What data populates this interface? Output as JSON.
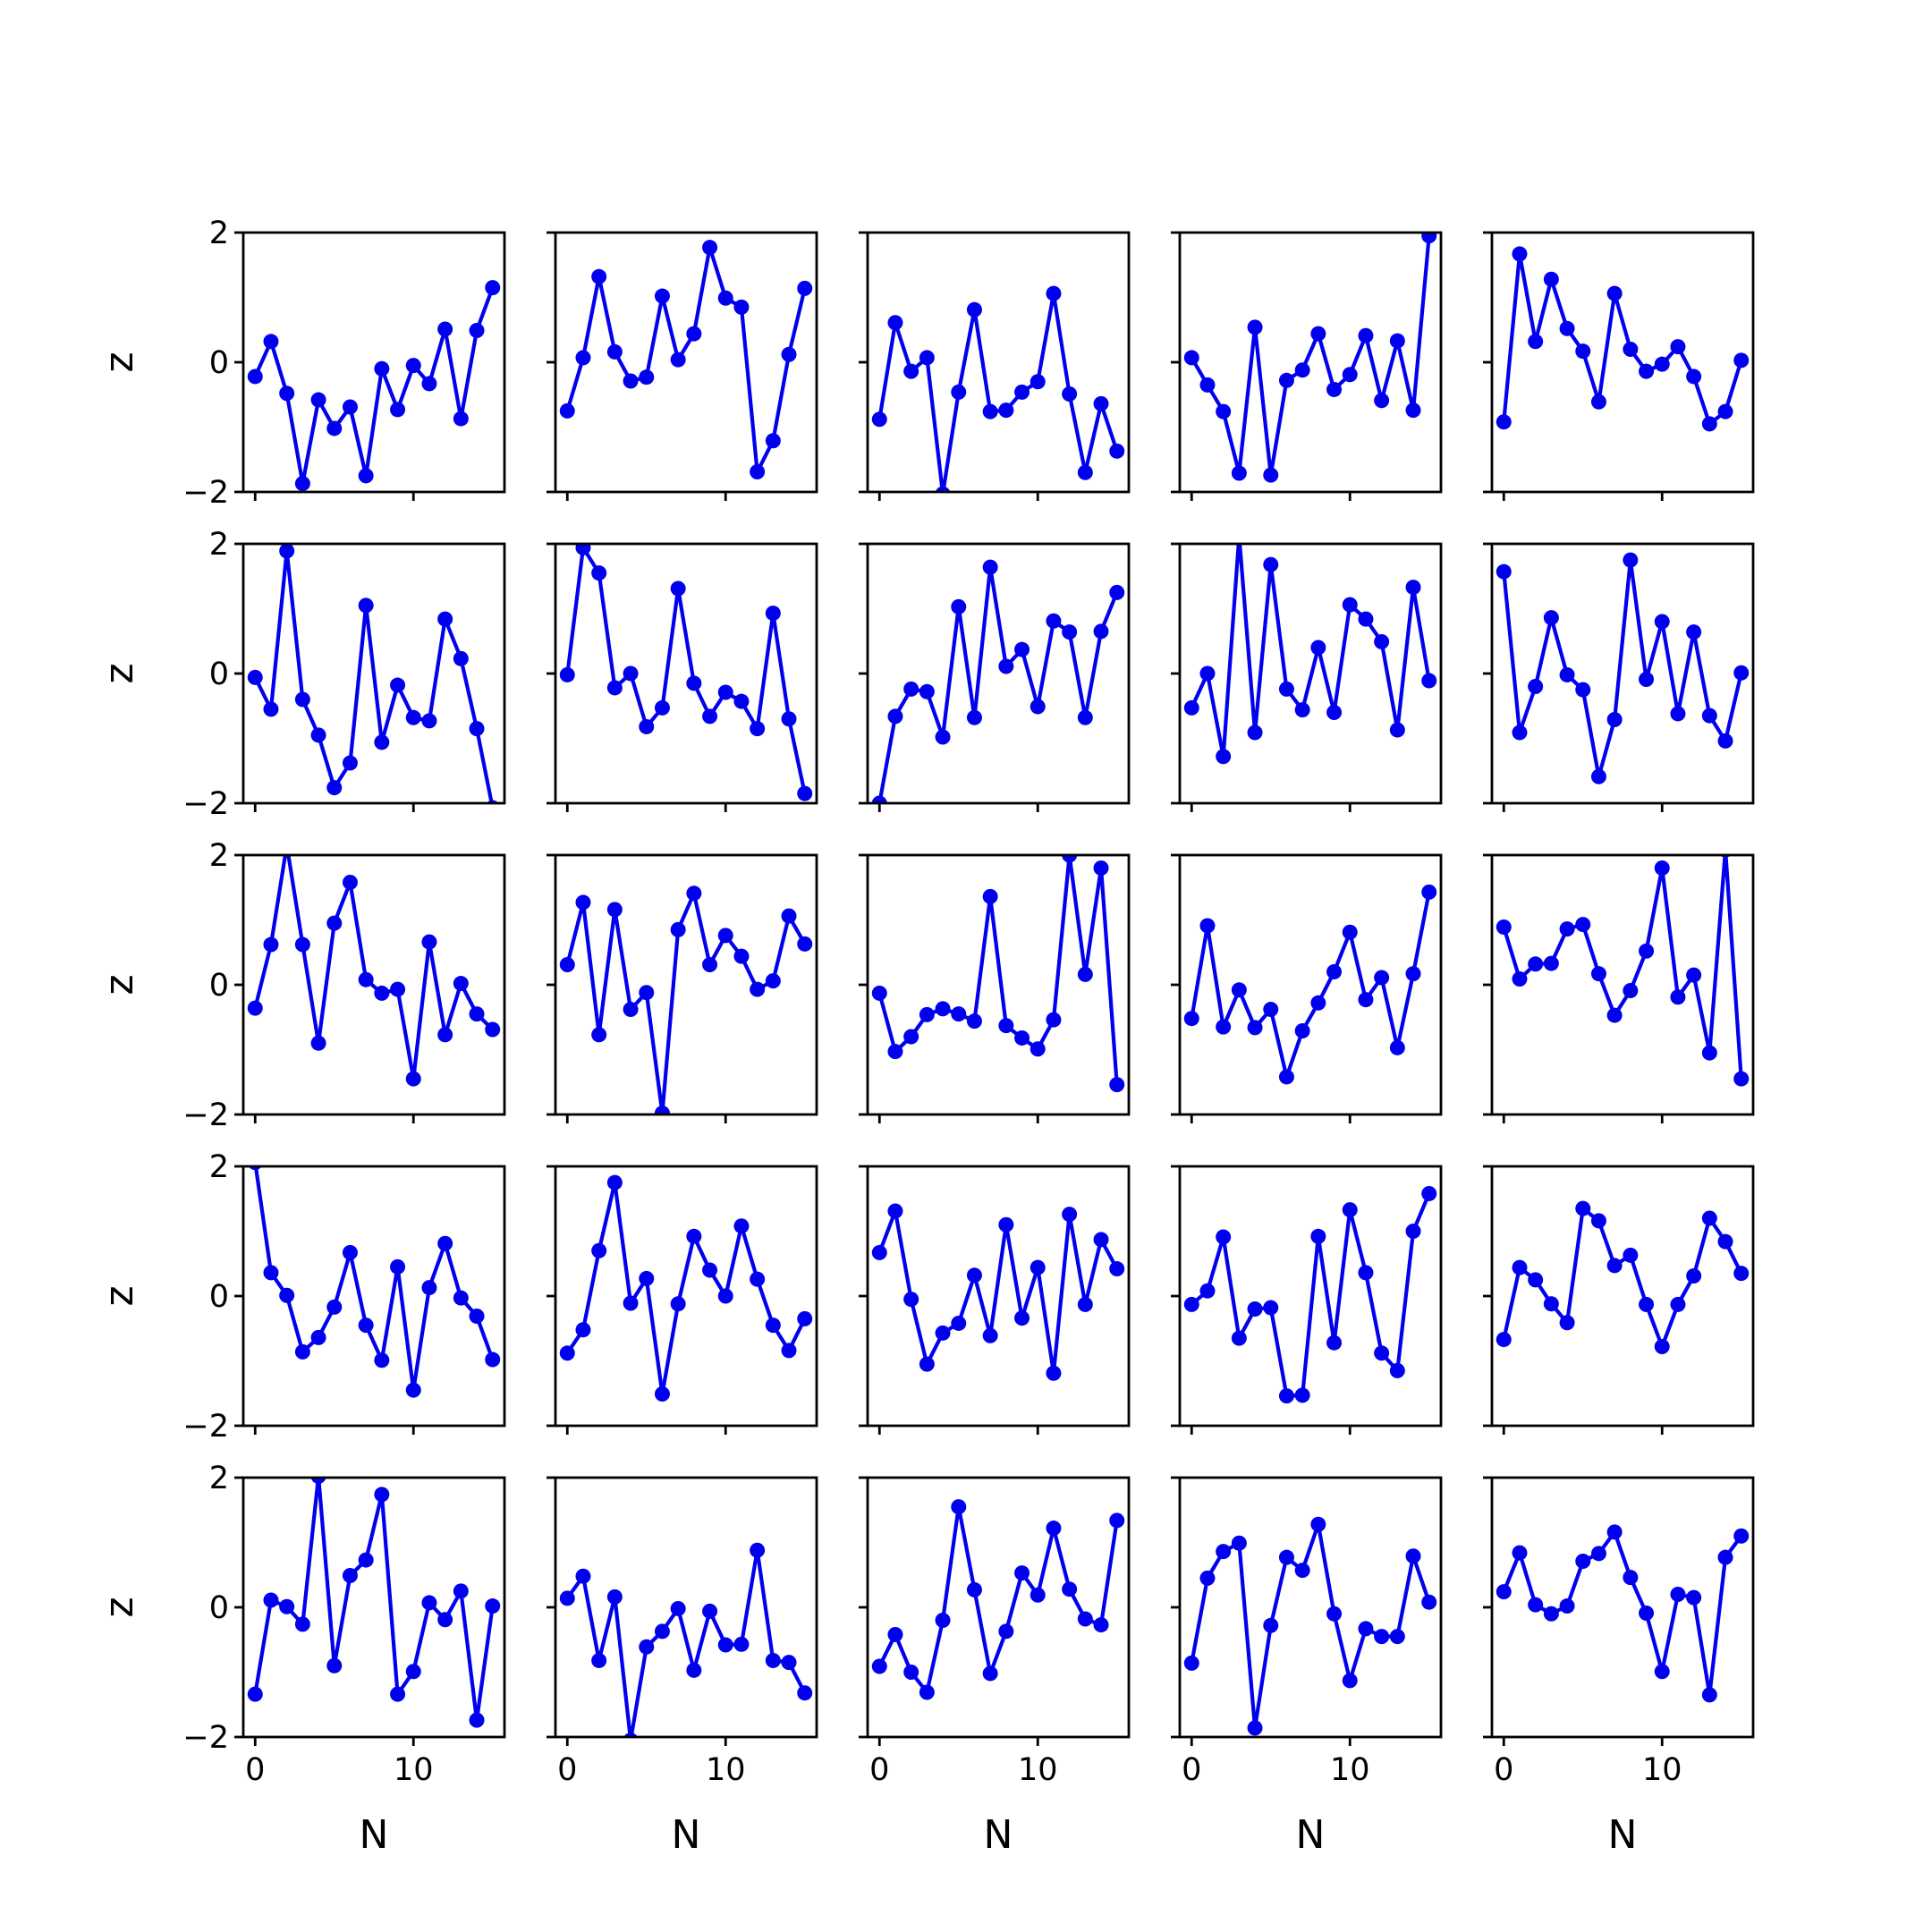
{
  "figure": {
    "rows": 5,
    "cols": 5
  },
  "line_color": "#0000ee",
  "chart_data": {
    "type": "line",
    "xlabel": "N",
    "ylabel": "z",
    "xlim": [
      -0.75,
      15.75
    ],
    "ylim": [
      -2,
      2
    ],
    "xticks": [
      0,
      10
    ],
    "yticks": [
      -2,
      0,
      2
    ],
    "x": [
      0,
      1,
      2,
      3,
      4,
      5,
      6,
      7,
      8,
      9,
      10,
      11,
      12,
      13,
      14,
      15
    ],
    "panels": [
      [
        -0.22,
        0.32,
        -0.48,
        -1.87,
        -0.58,
        -1.02,
        -0.69,
        -1.75,
        -0.1,
        -0.73,
        -0.05,
        -0.33,
        0.51,
        -0.87,
        0.49,
        1.15
      ],
      [
        -0.75,
        0.07,
        1.32,
        0.16,
        -0.29,
        -0.23,
        1.02,
        0.04,
        0.44,
        1.77,
        0.99,
        0.85,
        -1.69,
        -1.21,
        0.12,
        1.14
      ],
      [
        -0.88,
        0.61,
        -0.14,
        0.07,
        -2.03,
        -0.46,
        0.81,
        -0.76,
        -0.74,
        -0.46,
        -0.3,
        1.06,
        -0.49,
        -1.7,
        -0.64,
        -1.37
      ],
      [
        0.07,
        -0.35,
        -0.76,
        -1.71,
        0.54,
        -1.74,
        -0.28,
        -0.12,
        0.44,
        -0.42,
        -0.19,
        0.41,
        -0.59,
        0.33,
        -0.74,
        1.95
      ],
      [
        -0.92,
        1.67,
        0.32,
        1.28,
        0.52,
        0.17,
        -0.61,
        1.06,
        0.2,
        -0.14,
        -0.03,
        0.24,
        -0.22,
        -0.95,
        -0.76,
        0.03
      ],
      [
        -0.06,
        -0.55,
        1.89,
        -0.4,
        -0.95,
        -1.76,
        -1.38,
        1.05,
        -1.06,
        -0.18,
        -0.68,
        -0.73,
        0.84,
        0.23,
        -0.85,
        -2.07
      ],
      [
        -0.02,
        1.94,
        1.55,
        -0.22,
        0.0,
        -0.82,
        -0.53,
        1.31,
        -0.15,
        -0.66,
        -0.29,
        -0.43,
        -0.85,
        0.93,
        -0.7,
        -1.85
      ],
      [
        -2.0,
        -0.66,
        -0.24,
        -0.28,
        -0.98,
        1.03,
        -0.68,
        1.64,
        0.11,
        0.37,
        -0.51,
        0.81,
        0.64,
        -0.68,
        0.65,
        1.25
      ],
      [
        -0.53,
        0.0,
        -1.28,
        2.12,
        -0.91,
        1.68,
        -0.24,
        -0.56,
        0.4,
        -0.6,
        1.06,
        0.84,
        0.49,
        -0.87,
        1.33,
        -0.11
      ],
      [
        1.57,
        -0.91,
        -0.2,
        0.86,
        -0.02,
        -0.25,
        -1.59,
        -0.71,
        1.75,
        -0.09,
        0.8,
        -0.62,
        0.64,
        -0.65,
        -1.04,
        0.01
      ],
      [
        -0.36,
        0.62,
        2.15,
        0.62,
        -0.9,
        0.95,
        1.58,
        0.08,
        -0.13,
        -0.07,
        -1.45,
        0.66,
        -0.77,
        0.02,
        -0.45,
        -0.69
      ],
      [
        0.31,
        1.27,
        -0.77,
        1.16,
        -0.38,
        -0.12,
        -1.98,
        0.85,
        1.41,
        0.31,
        0.76,
        0.44,
        -0.07,
        0.06,
        1.06,
        0.63
      ],
      [
        -0.13,
        -1.03,
        -0.8,
        -0.46,
        -0.37,
        -0.45,
        -0.56,
        1.36,
        -0.63,
        -0.82,
        -0.99,
        -0.54,
        2.0,
        0.16,
        1.8,
        -1.54
      ],
      [
        -0.52,
        0.91,
        -0.65,
        -0.08,
        -0.66,
        -0.38,
        -1.42,
        -0.71,
        -0.28,
        0.2,
        0.81,
        -0.23,
        0.11,
        -0.97,
        0.17,
        1.43
      ],
      [
        0.89,
        0.09,
        0.32,
        0.33,
        0.86,
        0.93,
        0.17,
        -0.47,
        -0.09,
        0.52,
        1.8,
        -0.19,
        0.15,
        -1.05,
        2.08,
        -1.45
      ],
      [
        2.06,
        0.36,
        0.01,
        -0.86,
        -0.64,
        -0.17,
        0.67,
        -0.45,
        -0.99,
        0.45,
        -1.45,
        0.13,
        0.81,
        -0.03,
        -0.31,
        -0.98
      ],
      [
        -0.88,
        -0.52,
        0.7,
        1.75,
        -0.11,
        0.27,
        -1.51,
        -0.12,
        0.92,
        0.4,
        0.0,
        1.08,
        0.26,
        -0.45,
        -0.84,
        -0.35
      ],
      [
        0.67,
        1.31,
        -0.05,
        -1.05,
        -0.57,
        -0.42,
        0.32,
        -0.61,
        1.1,
        -0.34,
        0.44,
        -1.19,
        1.26,
        -0.13,
        0.87,
        0.42
      ],
      [
        -0.13,
        0.08,
        0.91,
        -0.65,
        -0.2,
        -0.18,
        -1.54,
        -1.53,
        0.92,
        -0.72,
        1.33,
        0.36,
        -0.88,
        -1.15,
        1.0,
        1.58
      ],
      [
        -0.67,
        0.44,
        0.25,
        -0.12,
        -0.41,
        1.35,
        1.16,
        0.47,
        0.63,
        -0.13,
        -0.78,
        -0.13,
        0.31,
        1.2,
        0.84,
        0.35
      ],
      [
        -1.34,
        0.11,
        0.01,
        -0.26,
        2.02,
        -0.9,
        0.49,
        0.73,
        1.74,
        -1.34,
        -0.99,
        0.07,
        -0.19,
        0.25,
        -1.74,
        0.02
      ],
      [
        0.14,
        0.48,
        -0.82,
        0.16,
        -2.05,
        -0.61,
        -0.37,
        -0.02,
        -0.97,
        -0.06,
        -0.58,
        -0.57,
        0.88,
        -0.82,
        -0.85,
        -1.32
      ],
      [
        -0.91,
        -0.42,
        -1.0,
        -1.31,
        -0.2,
        1.55,
        0.27,
        -1.02,
        -0.37,
        0.53,
        0.19,
        1.22,
        0.28,
        -0.18,
        -0.27,
        1.34
      ],
      [
        -0.86,
        0.45,
        0.86,
        0.99,
        -1.86,
        -0.28,
        0.77,
        0.57,
        1.28,
        -0.1,
        -1.13,
        -0.33,
        -0.45,
        -0.45,
        0.79,
        0.08
      ],
      [
        0.24,
        0.84,
        0.04,
        -0.1,
        0.02,
        0.71,
        0.83,
        1.16,
        0.46,
        -0.09,
        -0.99,
        0.2,
        0.15,
        -1.35,
        0.77,
        1.1
      ]
    ]
  }
}
